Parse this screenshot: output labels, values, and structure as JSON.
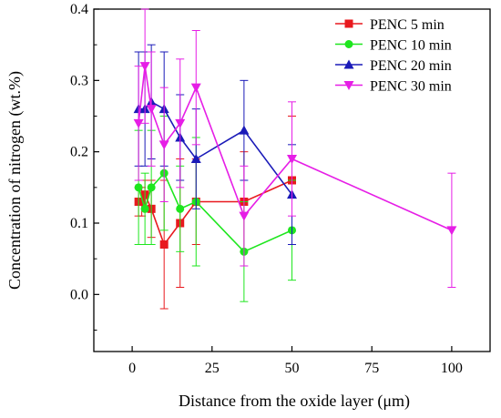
{
  "chart_data": {
    "type": "line",
    "title": "",
    "xlabel": "Distance from the oxide layer (μm)",
    "ylabel": "Concentration of nitrogen (wt.%)",
    "xlim": [
      -12,
      112
    ],
    "ylim": [
      -0.08,
      0.4
    ],
    "xticks": [
      0,
      25,
      50,
      75,
      100
    ],
    "xtick_labels": [
      "0",
      "25",
      "50",
      "75",
      "100"
    ],
    "yticks": [
      0.0,
      0.1,
      0.2,
      0.3,
      0.4
    ],
    "ytick_labels": [
      "0.0",
      "0.1",
      "0.2",
      "0.3",
      "0.4"
    ],
    "grid": false,
    "legend_position": "top-right",
    "series": [
      {
        "name": "PENC 5 min",
        "color": "#e8191e",
        "marker": "square",
        "x": [
          2,
          3,
          4,
          6,
          10,
          15,
          20,
          35,
          50
        ],
        "y": [
          0.13,
          0.13,
          0.14,
          0.12,
          0.07,
          0.1,
          0.13,
          0.13,
          0.16
        ],
        "err": [
          0.02,
          0.02,
          0.02,
          0.04,
          0.09,
          0.09,
          0.06,
          0.07,
          0.09
        ]
      },
      {
        "name": "PENC 10 min",
        "color": "#1ee61e",
        "marker": "circle",
        "x": [
          2,
          4,
          6,
          10,
          15,
          20,
          35,
          50
        ],
        "y": [
          0.15,
          0.12,
          0.15,
          0.17,
          0.12,
          0.13,
          0.06,
          0.09
        ],
        "err": [
          0.08,
          0.05,
          0.08,
          0.08,
          0.06,
          0.09,
          0.07,
          0.07
        ]
      },
      {
        "name": "PENC 20 min",
        "color": "#1a1ab8",
        "marker": "triangle-up",
        "x": [
          2,
          4,
          6,
          10,
          15,
          20,
          35,
          50
        ],
        "y": [
          0.26,
          0.26,
          0.27,
          0.26,
          0.22,
          0.19,
          0.23,
          0.14
        ],
        "err": [
          0.08,
          0.08,
          0.08,
          0.08,
          0.06,
          0.07,
          0.07,
          0.07
        ]
      },
      {
        "name": "PENC 30 min",
        "color": "#e61ee6",
        "marker": "triangle-down",
        "x": [
          2,
          4,
          6,
          10,
          15,
          20,
          35,
          50,
          100
        ],
        "y": [
          0.24,
          0.32,
          0.26,
          0.21,
          0.24,
          0.29,
          0.11,
          0.19,
          0.09
        ],
        "err": [
          0.08,
          0.08,
          0.08,
          0.08,
          0.09,
          0.08,
          0.07,
          0.08,
          0.08
        ]
      }
    ]
  }
}
